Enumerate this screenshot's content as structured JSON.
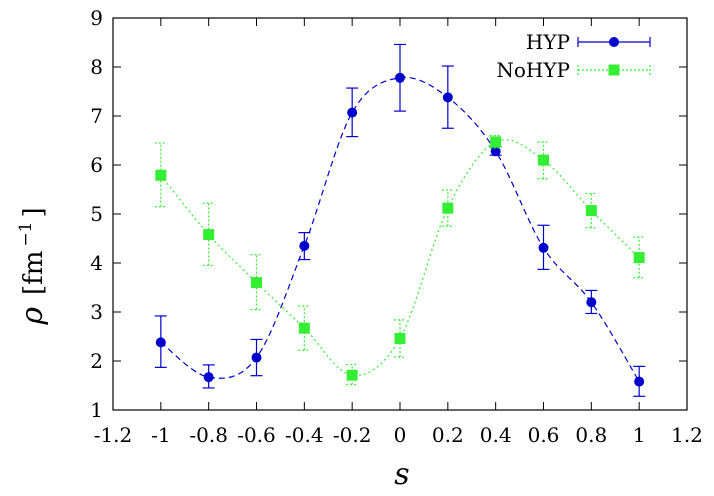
{
  "chart_data": {
    "type": "line",
    "title": "",
    "xlabel": "s",
    "ylabel": "ρ",
    "ylabel_unit": "[fm",
    "ylabel_exp": "−1",
    "ylabel_close": "]",
    "xlim": [
      -1.2,
      1.2
    ],
    "ylim": [
      1,
      9
    ],
    "x_ticks": [
      -1.2,
      -1,
      -0.8,
      -0.6,
      -0.4,
      -0.2,
      0,
      0.2,
      0.4,
      0.6,
      0.8,
      1,
      1.2
    ],
    "x_tick_labels": [
      "-1.2",
      "-1",
      "-0.8",
      "-0.6",
      "-0.4",
      "-0.2",
      "0",
      "0.2",
      "0.4",
      "0.6",
      "0.8",
      "1",
      "1.2"
    ],
    "y_ticks": [
      1,
      2,
      3,
      4,
      5,
      6,
      7,
      8,
      9
    ],
    "y_tick_labels": [
      "1",
      "2",
      "3",
      "4",
      "5",
      "6",
      "7",
      "8",
      "9"
    ],
    "grid": false,
    "legend_position": "top-right",
    "x": [
      -1,
      -0.8,
      -0.6,
      -0.4,
      -0.2,
      0,
      0.2,
      0.4,
      0.6,
      0.8,
      1
    ],
    "series": [
      {
        "name": "HYP",
        "color": "#0000cc",
        "marker": "circle",
        "line_style": "dashed",
        "values": [
          2.38,
          1.67,
          2.07,
          4.35,
          7.07,
          7.78,
          7.38,
          6.28,
          4.31,
          3.2,
          1.58
        ],
        "err_low": [
          1.87,
          1.45,
          1.7,
          4.07,
          6.58,
          7.1,
          6.75,
          6.2,
          3.87,
          2.97,
          1.28
        ],
        "err_high": [
          2.92,
          1.92,
          2.44,
          4.62,
          7.57,
          8.46,
          8.02,
          6.37,
          4.77,
          3.44,
          1.89
        ]
      },
      {
        "name": "NoHYP",
        "color": "#33ee33",
        "marker": "square",
        "line_style": "dotted",
        "values": [
          5.79,
          4.58,
          3.6,
          2.67,
          1.71,
          2.46,
          5.12,
          6.47,
          6.1,
          5.07,
          4.11
        ],
        "err_low": [
          5.15,
          3.95,
          3.05,
          2.22,
          1.52,
          2.08,
          4.75,
          6.35,
          5.72,
          4.72,
          3.7
        ],
        "err_high": [
          6.45,
          5.22,
          4.17,
          3.12,
          1.93,
          2.84,
          5.49,
          6.6,
          6.47,
          5.42,
          4.53
        ]
      }
    ]
  }
}
